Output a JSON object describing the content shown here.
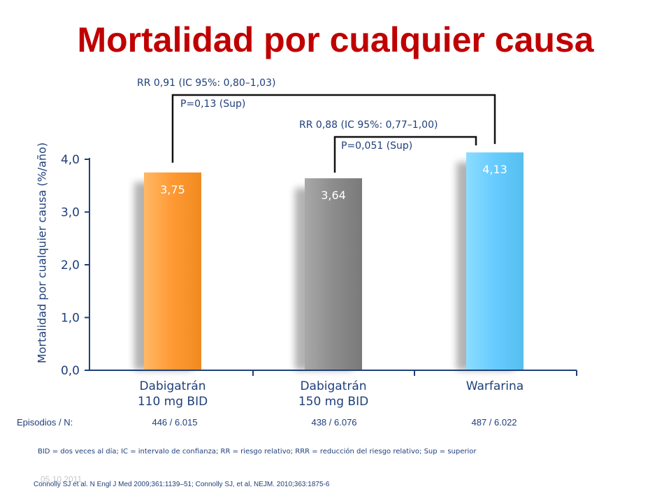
{
  "title": "Mortalidad por cualquier causa",
  "chart_data": {
    "type": "bar",
    "ylabel": "Mortalidad por cualquier causa (%/año)",
    "ylim": [
      0,
      4.0
    ],
    "yticks": [
      "0,0",
      "1,0",
      "2,0",
      "3,0",
      "4,0"
    ],
    "categories": [
      {
        "line1": "Dabigatrán",
        "line2": "110 mg BID"
      },
      {
        "line1": "Dabigatrán",
        "line2": "150 mg BID"
      },
      {
        "line1": "Warfarina",
        "line2": ""
      }
    ],
    "values": [
      3.75,
      3.64,
      4.13
    ],
    "value_labels": [
      "3,75",
      "3,64",
      "4,13"
    ],
    "bar_colors": [
      "#ff9933",
      "#8c8c8c",
      "#66ccff"
    ],
    "comparisons": [
      {
        "rr": "RR 0,91 (IC 95%: 0,80–1,03)",
        "p": "P=0,13 (Sup)",
        "from": 0,
        "to": 2
      },
      {
        "rr": "RR 0,88 (IC 95%: 0,77–1,00)",
        "p": "P=0,051 (Sup)",
        "from": 1,
        "to": 2
      }
    ]
  },
  "episodes": {
    "label": "Episodios / N:",
    "values": [
      "446 / 6.015",
      "438 / 6.076",
      "487 / 6.022"
    ]
  },
  "footnote": "BID = dos veces al día; IC = intervalo de confianza; RR = riesgo relativo; RRR = reducción del riesgo relativo; Sup = superior",
  "date": "05.10.2011",
  "references": "Connolly SJ et al. N Engl J Med 2009;361:1139–51; Connolly SJ, et al, NEJM. 2010;363:1875-6"
}
